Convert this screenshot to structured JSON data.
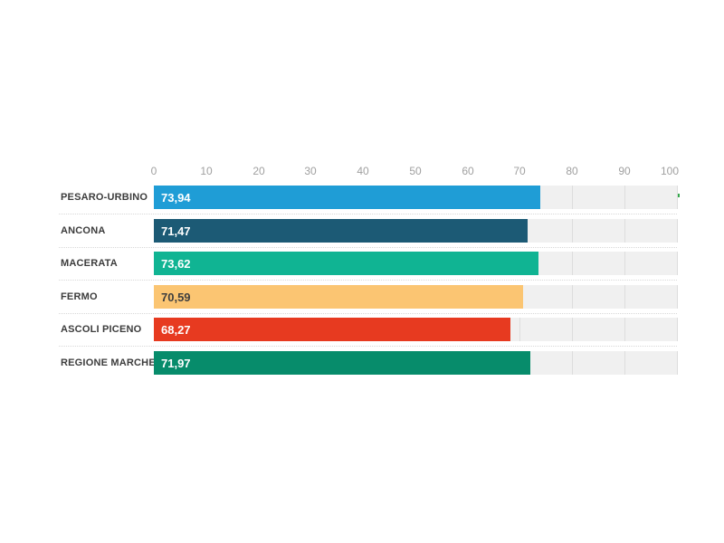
{
  "chart_data": {
    "type": "bar",
    "orientation": "horizontal",
    "title": "",
    "xlabel": "",
    "ylabel": "",
    "categories": [
      "PESARO-URBINO",
      "ANCONA",
      "MACERATA",
      "FERMO",
      "ASCOLI PICENO",
      "REGIONE MARCHE"
    ],
    "values": [
      73.94,
      71.47,
      73.62,
      70.59,
      68.27,
      71.97
    ],
    "value_labels": [
      "73,94",
      "71,47",
      "73,62",
      "70,59",
      "68,27",
      "71,97"
    ],
    "bar_colors": [
      "#1f9dd6",
      "#1c5a75",
      "#10b493",
      "#fbc572",
      "#e73a20",
      "#078c6b"
    ],
    "value_label_colors": [
      "#ffffff",
      "#ffffff",
      "#ffffff",
      "#3f3f3f",
      "#ffffff",
      "#ffffff"
    ],
    "xlim": [
      0,
      100
    ],
    "x_ticks": [
      "0",
      "10",
      "20",
      "30",
      "40",
      "50",
      "60",
      "70",
      "80",
      "90",
      "100"
    ],
    "grid": true,
    "legend": false
  },
  "colors": {
    "background": "#ffffff",
    "track": "#f0f0f0",
    "gridline": "#dddddd",
    "separator": "#d8d8d8",
    "tick_text": "#a0a0a0",
    "category_text": "#3c3c3c",
    "artifact_green": "#35a84c"
  }
}
